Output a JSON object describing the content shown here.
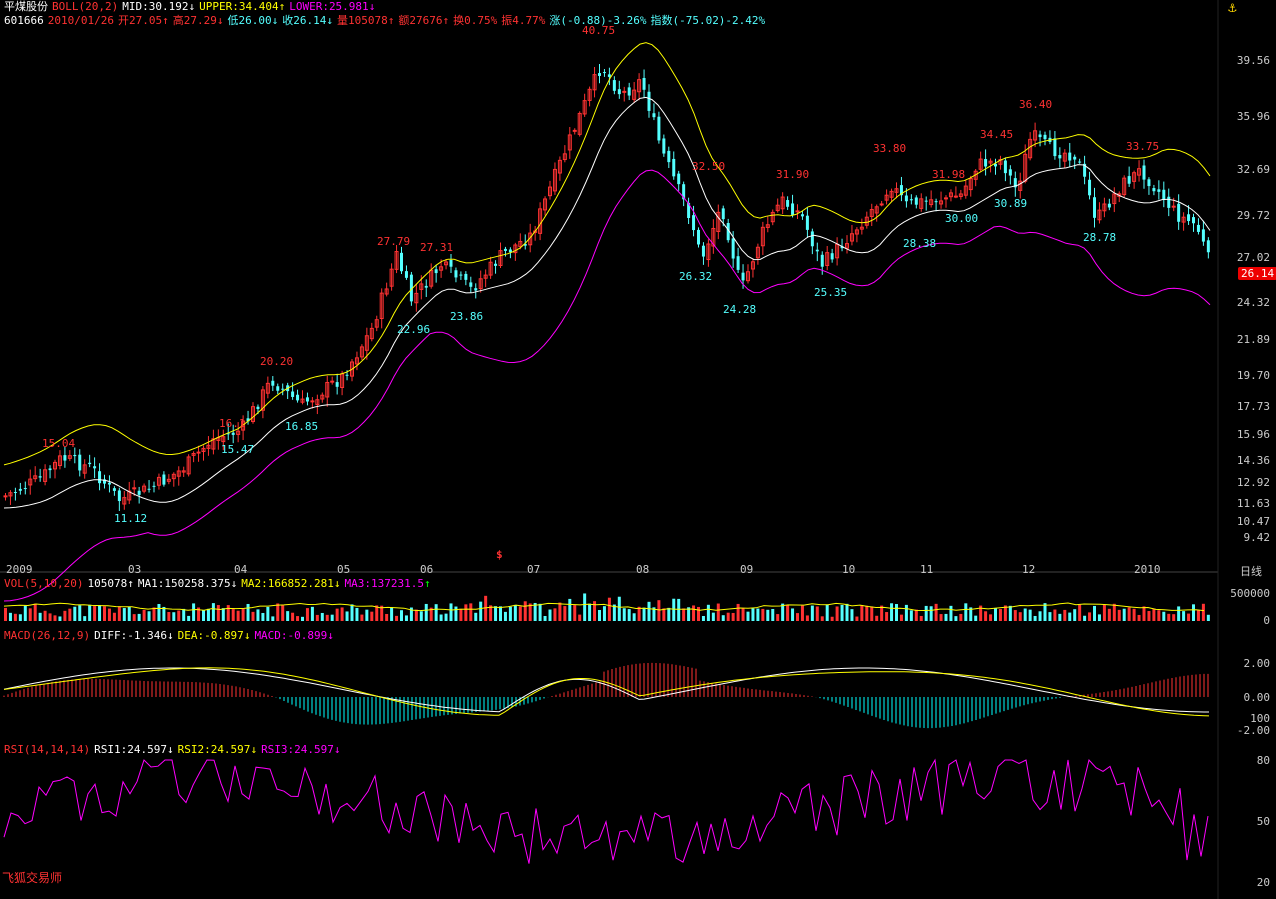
{
  "stock": {
    "name": "平煤股份",
    "code": "601666"
  },
  "boll": {
    "label": "BOLL(20,2)",
    "mid": "MID:30.192",
    "upper": "UPPER:34.404",
    "lower": "LOWER:25.981"
  },
  "quote": {
    "date": "2010/01/26",
    "open": "开27.05",
    "high": "高27.29",
    "low": "低26.00",
    "close": "收26.14",
    "volume": "量105078",
    "amount": "额27676",
    "turnover": "换0.75%",
    "amplitude": "振4.77%",
    "change": "涨(-0.88)-3.26%",
    "index_change": "指数(-75.02)-2.42%"
  },
  "price_axis": [
    "39.56",
    "35.96",
    "32.69",
    "29.72",
    "27.02",
    "24.32",
    "21.89",
    "19.70",
    "17.73",
    "15.96",
    "14.36",
    "12.92",
    "11.63",
    "10.47",
    "9.42"
  ],
  "current_price": "26.14",
  "months": [
    "2009",
    "03",
    "04",
    "05",
    "06",
    "07",
    "08",
    "09",
    "10",
    "11",
    "12",
    "2010"
  ],
  "period": "日线",
  "annotations": {
    "highs": [
      "15.04",
      "16.1",
      "20.20",
      "27.79",
      "27.31",
      "40.75",
      "32.50",
      "31.90",
      "33.80",
      "31.98",
      "34.45",
      "36.40",
      "33.75"
    ],
    "lows": [
      "11.12",
      "15.47",
      "16.85",
      "22.96",
      "23.86",
      "26.32",
      "24.28",
      "25.35",
      "28.38",
      "30.00",
      "30.89",
      "28.78"
    ]
  },
  "marker": "$",
  "volume": {
    "label": "VOL(5,10,20)",
    "value": "105078",
    "ma1": "MA1:150258.375",
    "ma2": "MA2:166852.281",
    "ma3": "MA3:137231.5",
    "axis": [
      "500000",
      "0"
    ]
  },
  "macd": {
    "label": "MACD(26,12,9)",
    "diff": "DIFF:-1.346",
    "dea": "DEA:-0.897",
    "macd": "MACD:-0.899",
    "axis": [
      "2.00",
      "0.00",
      "100",
      "-2.00"
    ]
  },
  "rsi": {
    "label": "RSI(14,14,14)",
    "rsi1": "RSI1:24.597",
    "rsi2": "RSI2:24.597",
    "rsi3": "RSI3:24.597",
    "axis": [
      "80",
      "50",
      "20"
    ]
  },
  "watermark": "飞狐交易师",
  "anchor_icon": "anchor-icon",
  "colors": {
    "up": "#ff3232",
    "down": "#54ffff",
    "upper": "#ffff00",
    "mid": "#ffffff",
    "lower": "#ff00ff",
    "macd_pos": "#ff3232",
    "macd_neg": "#00ffff"
  }
}
